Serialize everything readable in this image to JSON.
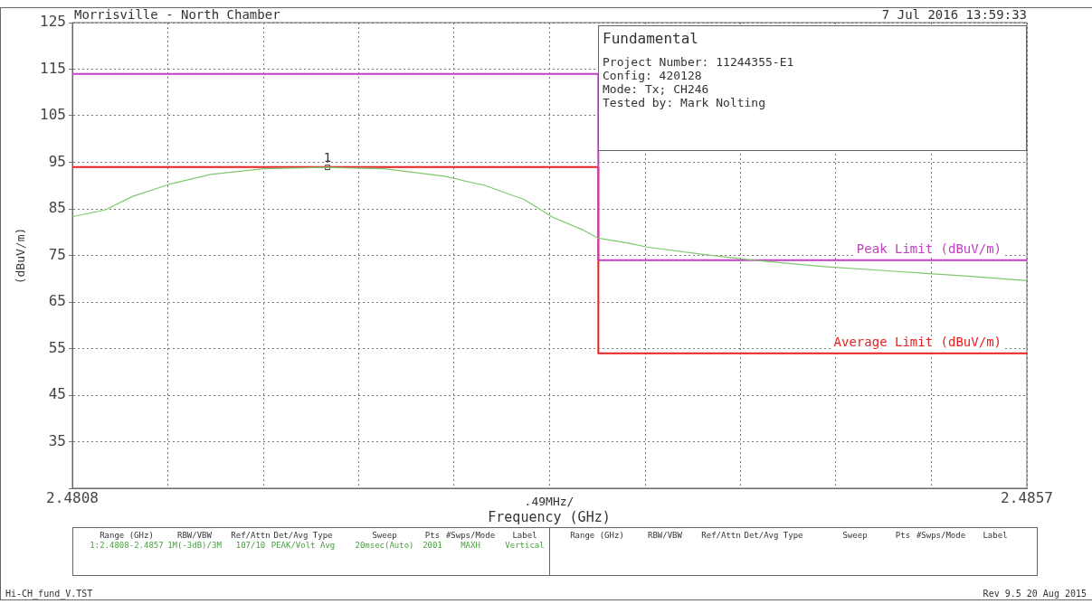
{
  "chart_data": {
    "type": "line",
    "title": "Morrisville - North Chamber",
    "subtitle": "7 Jul 2016   13:59:33",
    "xlabel": "Frequency (GHz)",
    "ylabel": "(dBuV/m)",
    "xlim": [
      2.4808,
      2.4857
    ],
    "ylim": [
      25,
      125
    ],
    "xticks": [
      2.4808,
      {
        "value": 2.48129,
        "label": null
      },
      {
        "value": 2.48178,
        "label": null
      },
      {
        "value": 2.48227,
        "label": null
      },
      {
        "value": 2.48276,
        "label": null
      },
      {
        "value": 2.48325,
        "label": null
      },
      {
        "value": 2.48374,
        "label": null
      },
      {
        "value": 2.48423,
        "label": null
      },
      {
        "value": 2.48472,
        "label": null
      },
      {
        "value": 2.48521,
        "label": null
      },
      2.4857
    ],
    "yticks": [
      {
        "value": 25,
        "label": null
      },
      35,
      45,
      55,
      65,
      75,
      85,
      95,
      105,
      115,
      125
    ],
    "grid": true,
    "legend": false,
    "marker": "none",
    "line_style": "solid",
    "series": [
      {
        "type": "line",
        "color": "#80c870",
        "x": [
          2.4808,
          2.48097,
          2.48111,
          2.4813,
          2.48151,
          2.48178,
          2.48209,
          2.4824,
          2.48271,
          2.48292,
          2.48312,
          2.48327,
          2.48342,
          2.4835,
          2.48366,
          2.48375,
          2.48402,
          2.48429,
          2.48466,
          2.48502,
          2.48538,
          2.4857
        ],
        "values": [
          83.3,
          84.8,
          87.7,
          90.3,
          92.4,
          93.6,
          93.9,
          93.6,
          92.0,
          90.0,
          87.0,
          83.1,
          80.5,
          78.7,
          77.6,
          76.8,
          75.3,
          74.0,
          72.6,
          71.6,
          70.6,
          69.6
        ]
      },
      {
        "type": "step",
        "name": "Peak Limit (dBuV/m)",
        "color": "#c040c0",
        "x": [
          2.4808,
          2.4835,
          2.4857
        ],
        "values": [
          114,
          74,
          74
        ]
      },
      {
        "type": "step",
        "name": "Average Limit (dBuV/m)",
        "color": "#e82020",
        "x": [
          2.4808,
          2.4835,
          2.4857
        ],
        "values": [
          94,
          54,
          54
        ]
      },
      {
        "type": "scatter",
        "marker": "square",
        "color": "#333333",
        "x": [
          2.48211
        ],
        "values": [
          93.9
        ]
      }
    ],
    "annotations": [
      ".49MHz/",
      {
        "text": "1",
        "x": 2.48211,
        "y": 93.9
      },
      "Fundamental",
      "Project Number: 11244355-E1",
      "Config: 420128",
      "Mode: Tx; CH246",
      "Tested by: Mark Nolting",
      "Range (GHz)",
      "RBW/VBW",
      "Ref/Attn",
      "Det/Avg Type",
      "Sweep",
      "Pts",
      "#Swps/Mode",
      "Label",
      "1:2.4808-2.4857",
      "1M(-3dB)/3M",
      "107/10",
      "PEAK/Volt Avg",
      "20msec(Auto)",
      "2001",
      "MAXH",
      "Vertical",
      "Range (GHz)",
      "RBW/VBW",
      "Ref/Attn",
      "Det/Avg Type",
      "Sweep",
      "Pts",
      "#Swps/Mode",
      "Label",
      "Hi-CH_fund_V.TST",
      "Rev 9.5 20 Aug 2015"
    ]
  }
}
